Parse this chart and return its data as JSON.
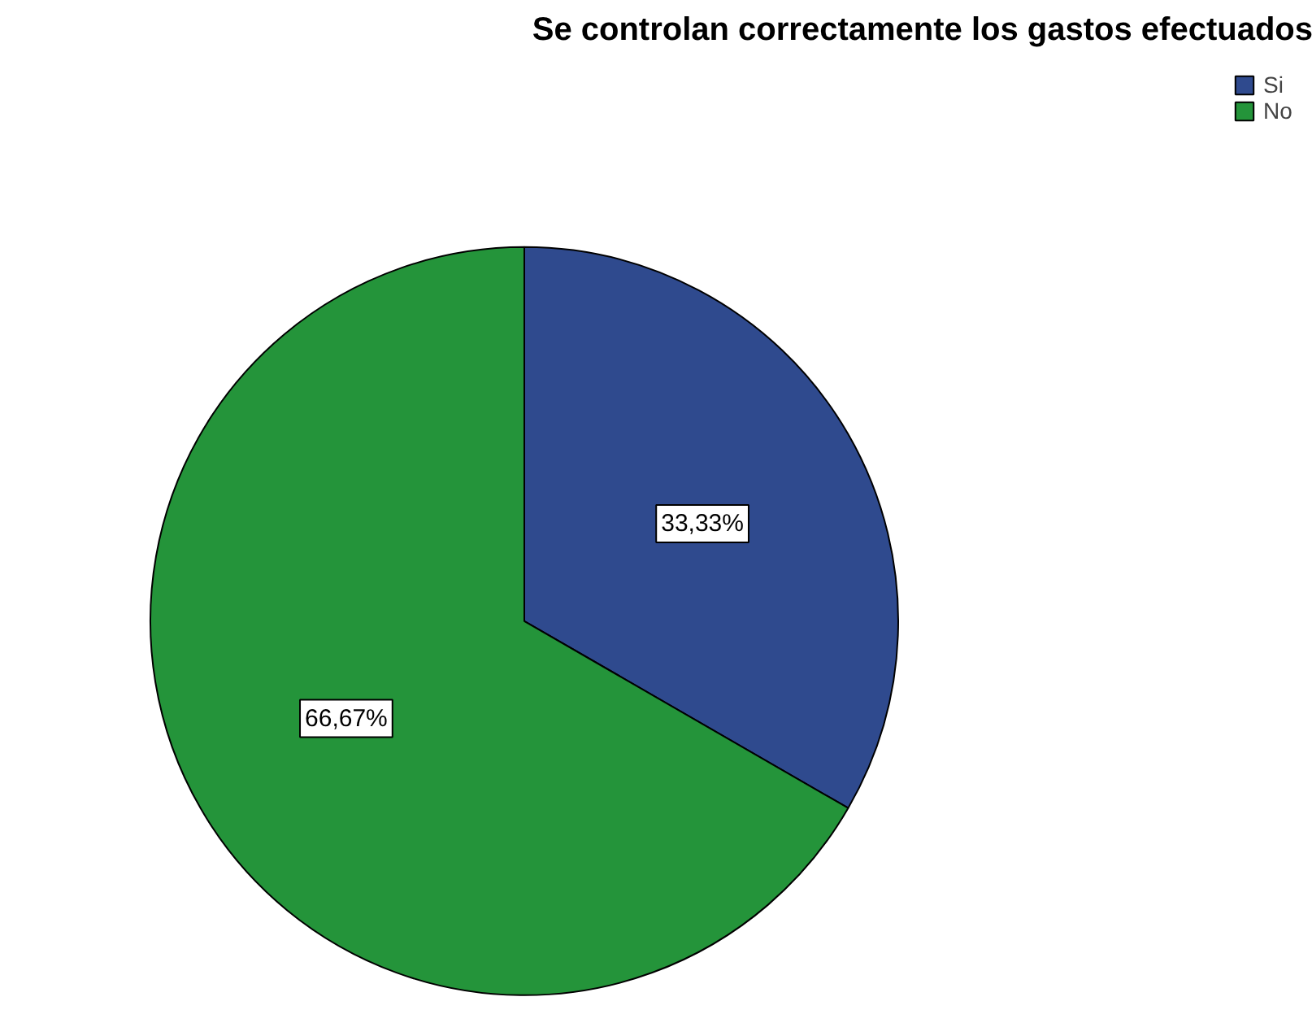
{
  "chart_data": {
    "type": "pie",
    "title": "Se controlan correctamente los gastos efectuados",
    "categories": [
      "Si",
      "No"
    ],
    "values": [
      33.33,
      66.67
    ],
    "colors": [
      "#2f4a8e",
      "#24943a"
    ],
    "value_labels": [
      "33,33%",
      "66,67%"
    ],
    "legend": "top right"
  }
}
